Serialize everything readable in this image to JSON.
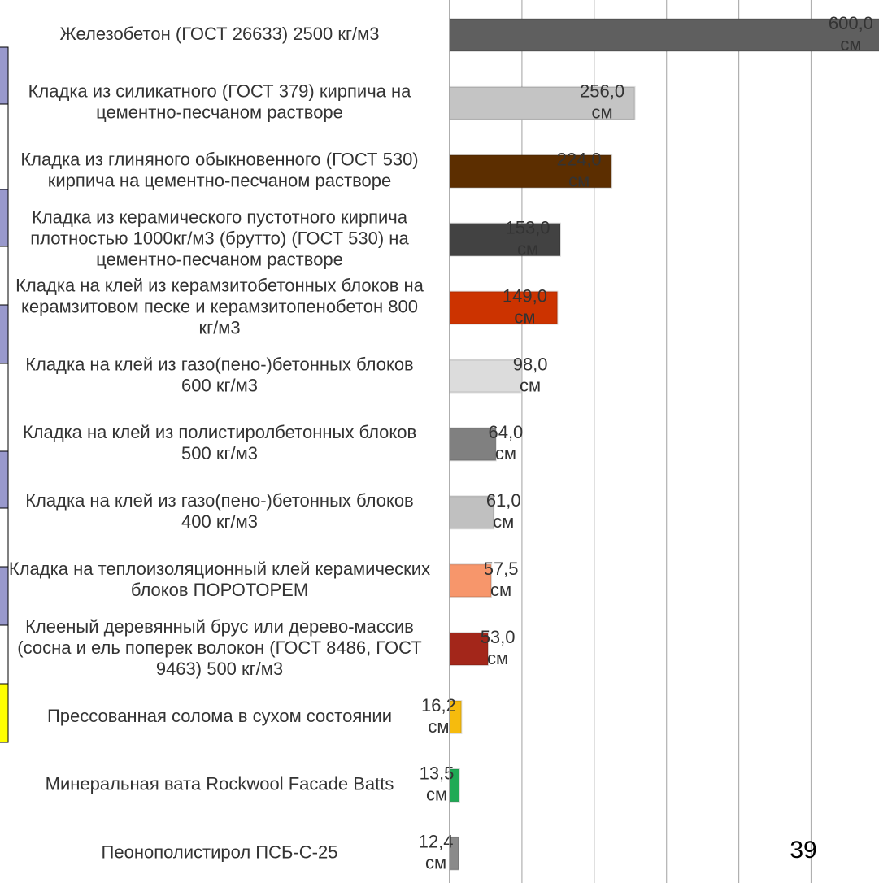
{
  "chart_data": {
    "type": "bar",
    "orientation": "horizontal",
    "categories": [
      "Железобетон (ГОСТ 26633) 2500 кг/м3",
      "Кладка из силикатного (ГОСТ 379) кирпича на цементно-песчаном растворе",
      "Кладка из глиняного обыкновенного (ГОСТ 530) кирпича на цементно-песчаном растворе",
      "Кладка из керамического пустотного кирпича плотностью 1000кг/м3 (брутто) (ГОСТ 530) на цементно-песчаном растворе",
      "Кладка на клей из керамзитобетонных блоков на керамзитовом песке и керамзитопенобетон 800 кг/м3",
      "Кладка на клей из газо(пено-)бетонных блоков 600 кг/м3",
      "Кладка на клей из полистиролбетонных блоков 500 кг/м3",
      "Кладка на клей из газо(пено-)бетонных блоков 400 кг/м3",
      "Кладка на теплоизоляционный клей керамических блоков ПОРОТОРЕМ",
      "Клееный деревянный брус или дерево-массив (сосна и ель поперек волокон (ГОСТ 8486, ГОСТ 9463) 500 кг/м3",
      "Прессованная солома в сухом состоянии",
      "Минеральная вата Rockwool Facade Batts",
      "Пеонополистирол ПСБ-С-25"
    ],
    "values": [
      600,
      256,
      224,
      153,
      149,
      98,
      64,
      61,
      57.5,
      53,
      16.2,
      13.5,
      12.4
    ],
    "value_labels": [
      "600,0 см",
      "256,0 см",
      "224,0 см",
      "153,0 см",
      "149,0 см",
      "98,0 см",
      "64,0 см",
      "61,0 см",
      "57,5 см",
      "53,0 см",
      "16,2 см",
      "13,5 см",
      "12,4 см"
    ],
    "colors": [
      "#5f5f5f",
      "#c4c4c4",
      "#5c2e00",
      "#424242",
      "#cc3300",
      "#dcdcdc",
      "#808080",
      "#c0c0c0",
      "#f7966b",
      "#a3261a",
      "#f6bb0d",
      "#1faa55",
      "#8a8a8a"
    ],
    "xlim": [
      0,
      600
    ],
    "xticks": [
      0,
      100,
      200,
      300,
      400,
      500
    ],
    "grid": true
  },
  "page_number": "39"
}
